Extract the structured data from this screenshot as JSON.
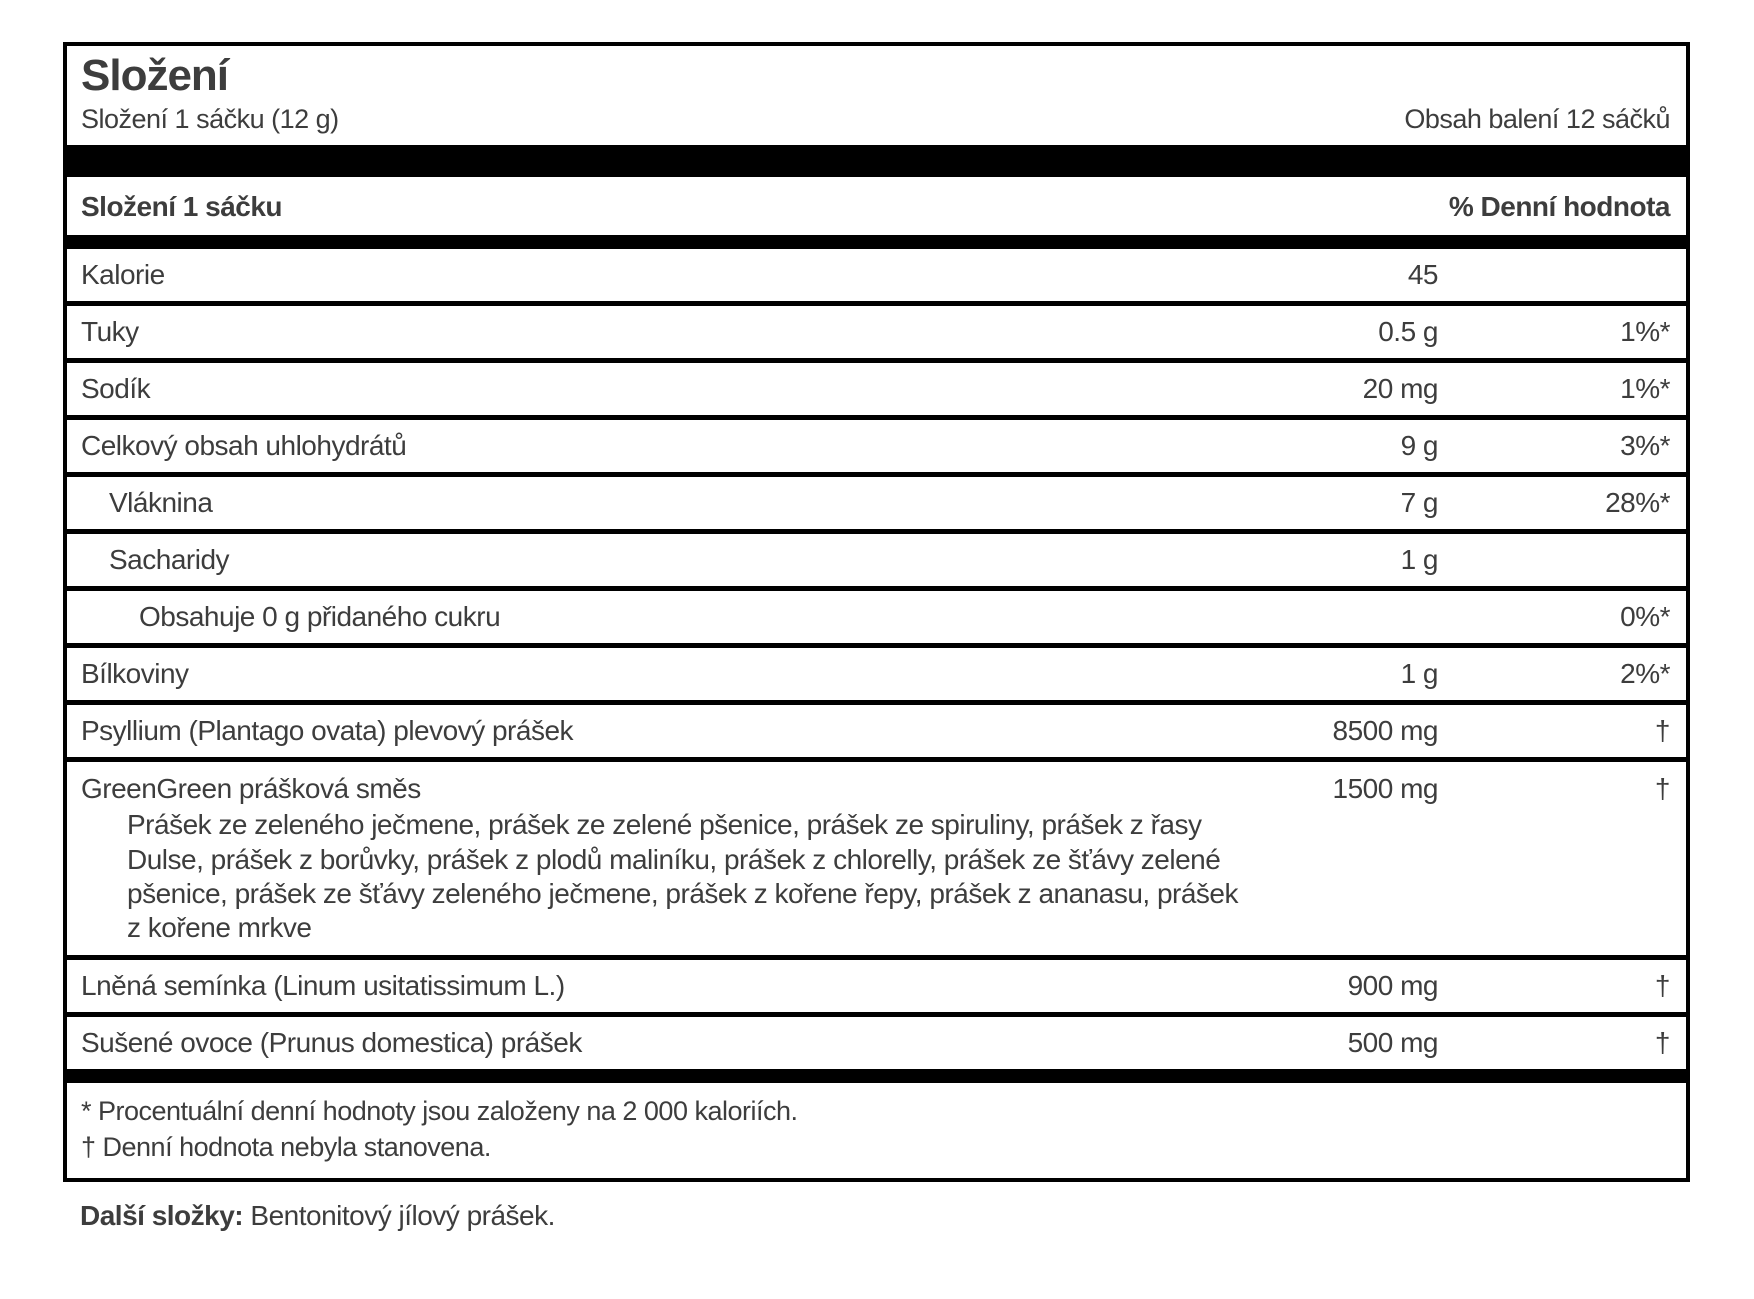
{
  "label": {
    "title": "Složení",
    "serving_left": "Složení 1 sáčku (12 g)",
    "serving_right": "Obsah balení 12 sáčků",
    "header_left": "Složení 1 sáčku",
    "header_right": "% Denní hodnota",
    "rows": [
      {
        "name": "Kalorie",
        "amount": "45",
        "dv": ""
      },
      {
        "name": "Tuky",
        "amount": "0.5 g",
        "dv": "1%*"
      },
      {
        "name": "Sodík",
        "amount": "20 mg",
        "dv": "1%*"
      },
      {
        "name": "Celkový obsah uhlohydrátů",
        "amount": "9 g",
        "dv": "3%*"
      },
      {
        "name": "Vláknina",
        "amount": "7 g",
        "dv": "28%*"
      },
      {
        "name": "Sacharidy",
        "amount": "1 g",
        "dv": ""
      },
      {
        "name": "Obsahuje 0 g přidaného cukru",
        "amount": "",
        "dv": "0%*"
      },
      {
        "name": "Bílkoviny",
        "amount": "1 g",
        "dv": "2%*"
      },
      {
        "name": "Psyllium (Plantago ovata) plevový prášek",
        "amount": "8500 mg",
        "dv": "†"
      },
      {
        "name": "GreenGreen prášková směs",
        "amount": "1500 mg",
        "dv": "†",
        "description": "Prášek ze zeleného ječmene, prášek ze zelené pšenice, prášek ze spiruliny, prášek z řasy\nDulse, prášek z borůvky, prášek z plodů maliníku, prášek z chlorelly, prášek ze šťávy zelené\npšenice, prášek ze šťávy zeleného ječmene, prášek z kořene řepy, prášek z ananasu, prášek\nz kořene mrkve"
      },
      {
        "name": "Lněná semínka (Linum usitatissimum L.)",
        "amount": "900 mg",
        "dv": "†"
      },
      {
        "name": "Sušené ovoce (Prunus domestica) prášek",
        "amount": "500 mg",
        "dv": "†"
      }
    ],
    "footnotes": [
      "* Procentuální denní hodnoty jsou založeny na 2 000 kaloriích.",
      "† Denní hodnota nebyla stanovena."
    ],
    "other_ingredients_label": "Další složky:",
    "other_ingredients_text": " Bentonitový jílový prášek.",
    "colors": {
      "text": "#3d3d3d",
      "border": "#000000",
      "background": "#ffffff"
    }
  }
}
